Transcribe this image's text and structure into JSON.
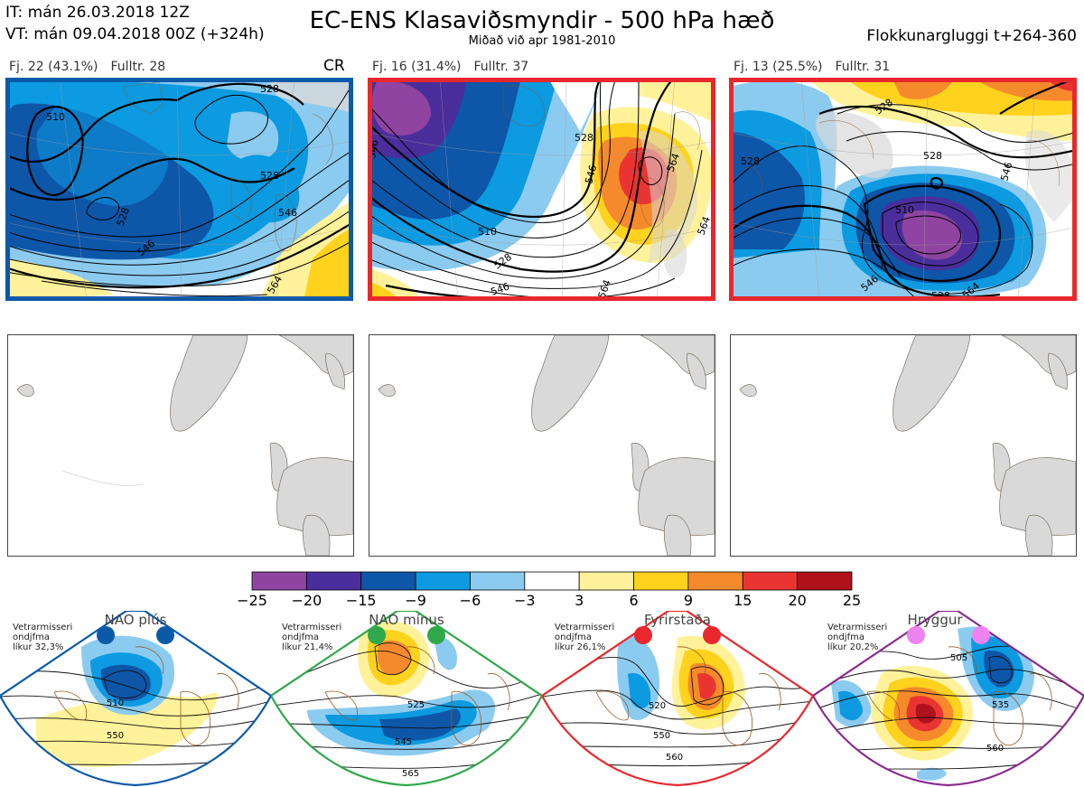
{
  "header": {
    "it": "IT: mán 26.03.2018 12Z",
    "vt": "VT: mán 09.04.2018 00Z  (+324h)",
    "title": "EC-ENS Klasaviðsmyndir - 500 hPa hæð",
    "subtitle": "Miðað við apr 1981-2010",
    "window": "Flokkunargluggi t+264-360"
  },
  "clusters": [
    {
      "count": "Fj. 22 (43.1%)",
      "rep": "Fulltr. 28",
      "mark": "CR",
      "border_color": "#0b5aa8",
      "contour_labels": [
        "510",
        "528",
        "546",
        "546",
        "528",
        "564",
        "528"
      ]
    },
    {
      "count": "Fj. 16 (31.4%)",
      "rep": "Fulltr. 37",
      "mark": "",
      "border_color": "#e8282d",
      "contour_labels": [
        "528",
        "546",
        "564",
        "510",
        "528",
        "546",
        "564",
        "546",
        "564"
      ]
    },
    {
      "count": "Fj. 13 (25.5%)",
      "rep": "Fulltr. 31",
      "mark": "",
      "border_color": "#e8282d",
      "contour_labels": [
        "528",
        "528",
        "528",
        "546",
        "510",
        "546",
        "528",
        "564"
      ]
    }
  ],
  "colorbar": {
    "colors": [
      "#8e44a0",
      "#4a2e9c",
      "#0e56a8",
      "#0c9ae0",
      "#8ccbf0",
      "#ffffff",
      "#fff29a",
      "#ffd21e",
      "#f58a2c",
      "#ea3432",
      "#b0121c"
    ],
    "ticks": [
      "−25",
      "−20",
      "−15",
      "−9",
      "−6",
      "−3",
      "3",
      "6",
      "9",
      "15",
      "20",
      "25"
    ]
  },
  "regimes": [
    {
      "name": "NAO plús",
      "note": [
        "Vetrarmisseri",
        "ondjfma",
        "líkur 32,3%"
      ],
      "edge_color": "#0b5aa8",
      "dot_color": "#0b5aa8",
      "contour_labels": [
        "510",
        "550"
      ]
    },
    {
      "name": "NAO mínus",
      "note": [
        "Vetrarmisseri",
        "ondjfma",
        "líkur 21,4%"
      ],
      "edge_color": "#2ea84a",
      "dot_color": "#2ea84a",
      "contour_labels": [
        "525",
        "545",
        "565"
      ]
    },
    {
      "name": "Fyrirstaða",
      "note": [
        "Vetrarmisseri",
        "ondjfma",
        "líkur 26,1%"
      ],
      "edge_color": "#e8282d",
      "dot_color": "#e8282d",
      "contour_labels": [
        "520",
        "550",
        "560"
      ]
    },
    {
      "name": "Hryggur",
      "note": [
        "Vetrarmisseri",
        "ondjfma",
        "líkur 20,2%"
      ],
      "edge_color": "#8a2b8e",
      "dot_color": "#ee82ee",
      "contour_labels": [
        "505",
        "535",
        "560"
      ]
    }
  ]
}
